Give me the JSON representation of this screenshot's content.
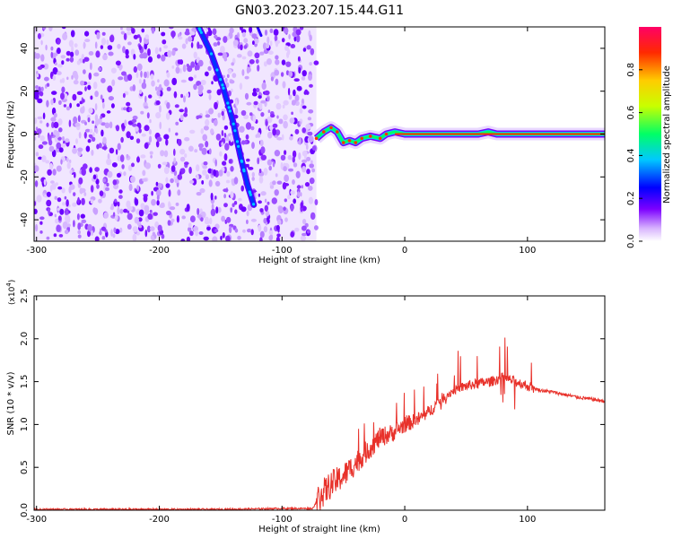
{
  "figure": {
    "title": "GN03.2023.207.15.44.G11"
  },
  "chart_data": [
    {
      "type": "heatmap",
      "panel": "top",
      "xlabel": "Height of straight line (km)",
      "ylabel": "Frequency (Hz)",
      "xlim": [
        -302,
        163
      ],
      "ylim": [
        -50,
        50
      ],
      "xticks": [
        -300,
        -200,
        -100,
        0,
        100
      ],
      "xtick_labels": [
        "-300",
        "-200",
        "-100",
        "0",
        "100"
      ],
      "yticks": [
        -40,
        -20,
        0,
        20,
        40
      ],
      "ytick_labels": [
        "-40",
        "-20",
        "0",
        "20",
        "40"
      ],
      "colorbar": {
        "label": "Normalized spectral amplitude",
        "range": [
          0,
          1
        ],
        "ticks": [
          0.0,
          0.2,
          0.4,
          0.6,
          0.8
        ],
        "tick_labels": [
          "0.0",
          "0.2",
          "0.4",
          "0.6",
          "0.8"
        ],
        "colors": [
          "#ffffff",
          "#d8b4fe",
          "#7c00ff",
          "#0000ff",
          "#00c8ff",
          "#00ff66",
          "#c8ff00",
          "#ffcc00",
          "#ff2a00",
          "#ff0066"
        ]
      },
      "features": {
        "noise_region_x": [
          -302,
          -72
        ],
        "carrier_frequency": 0,
        "carrier_x": [
          -72,
          163
        ],
        "diagonal_trace": [
          {
            "x": -168,
            "y": 50
          },
          {
            "x": -158,
            "y": 38
          },
          {
            "x": -148,
            "y": 22
          },
          {
            "x": -140,
            "y": 6
          },
          {
            "x": -134,
            "y": -10
          },
          {
            "x": -128,
            "y": -24
          },
          {
            "x": -123,
            "y": -33
          }
        ],
        "diagonal_trace_2": [
          {
            "x": -120,
            "y": 50
          },
          {
            "x": -117,
            "y": 46
          }
        ],
        "carrier_trace": [
          {
            "x": -72,
            "y": -2
          },
          {
            "x": -66,
            "y": 1
          },
          {
            "x": -60,
            "y": 3
          },
          {
            "x": -55,
            "y": 1
          },
          {
            "x": -50,
            "y": -4
          },
          {
            "x": -45,
            "y": -3
          },
          {
            "x": -40,
            "y": -4
          },
          {
            "x": -35,
            "y": -2
          },
          {
            "x": -28,
            "y": -1
          },
          {
            "x": -20,
            "y": -2
          },
          {
            "x": -15,
            "y": 0
          },
          {
            "x": -8,
            "y": 1
          },
          {
            "x": 0,
            "y": 0
          },
          {
            "x": 20,
            "y": 0
          },
          {
            "x": 40,
            "y": 0
          },
          {
            "x": 60,
            "y": 0
          },
          {
            "x": 68,
            "y": 1
          },
          {
            "x": 75,
            "y": 0
          },
          {
            "x": 100,
            "y": 0
          },
          {
            "x": 163,
            "y": 0
          }
        ]
      }
    },
    {
      "type": "line",
      "panel": "bottom",
      "xlabel": "Height of straight line (km)",
      "ylabel": "SNR (10 * v/v)",
      "y_multiplier_label": "(x10",
      "y_multiplier_exp": "4",
      "y_multiplier_close": ")",
      "xlim": [
        -302,
        163
      ],
      "ylim": [
        0,
        2.5
      ],
      "xticks": [
        -300,
        -200,
        -100,
        0,
        100
      ],
      "xtick_labels": [
        "-300",
        "-200",
        "-100",
        "0",
        "100"
      ],
      "yticks": [
        0.0,
        0.5,
        1.0,
        1.5,
        2.0,
        2.5
      ],
      "ytick_labels": [
        "0.0",
        "0.5",
        "1.0",
        "1.5",
        "2.0",
        "2.5"
      ],
      "color": "#e8312a",
      "series": [
        {
          "x": [
            -302,
            -250,
            -200,
            -150,
            -100,
            -75,
            -70,
            -60,
            -50,
            -40,
            -30,
            -20,
            -10,
            0,
            10,
            20,
            30,
            40,
            50,
            60,
            70,
            80,
            90,
            100,
            110,
            120,
            130,
            140,
            150,
            163
          ],
          "y": [
            0.01,
            0.01,
            0.01,
            0.01,
            0.02,
            0.02,
            0.15,
            0.3,
            0.4,
            0.55,
            0.7,
            0.85,
            0.9,
            1.0,
            1.05,
            1.15,
            1.3,
            1.4,
            1.45,
            1.48,
            1.5,
            1.55,
            1.5,
            1.45,
            1.4,
            1.38,
            1.35,
            1.32,
            1.3,
            1.27
          ]
        }
      ]
    }
  ]
}
